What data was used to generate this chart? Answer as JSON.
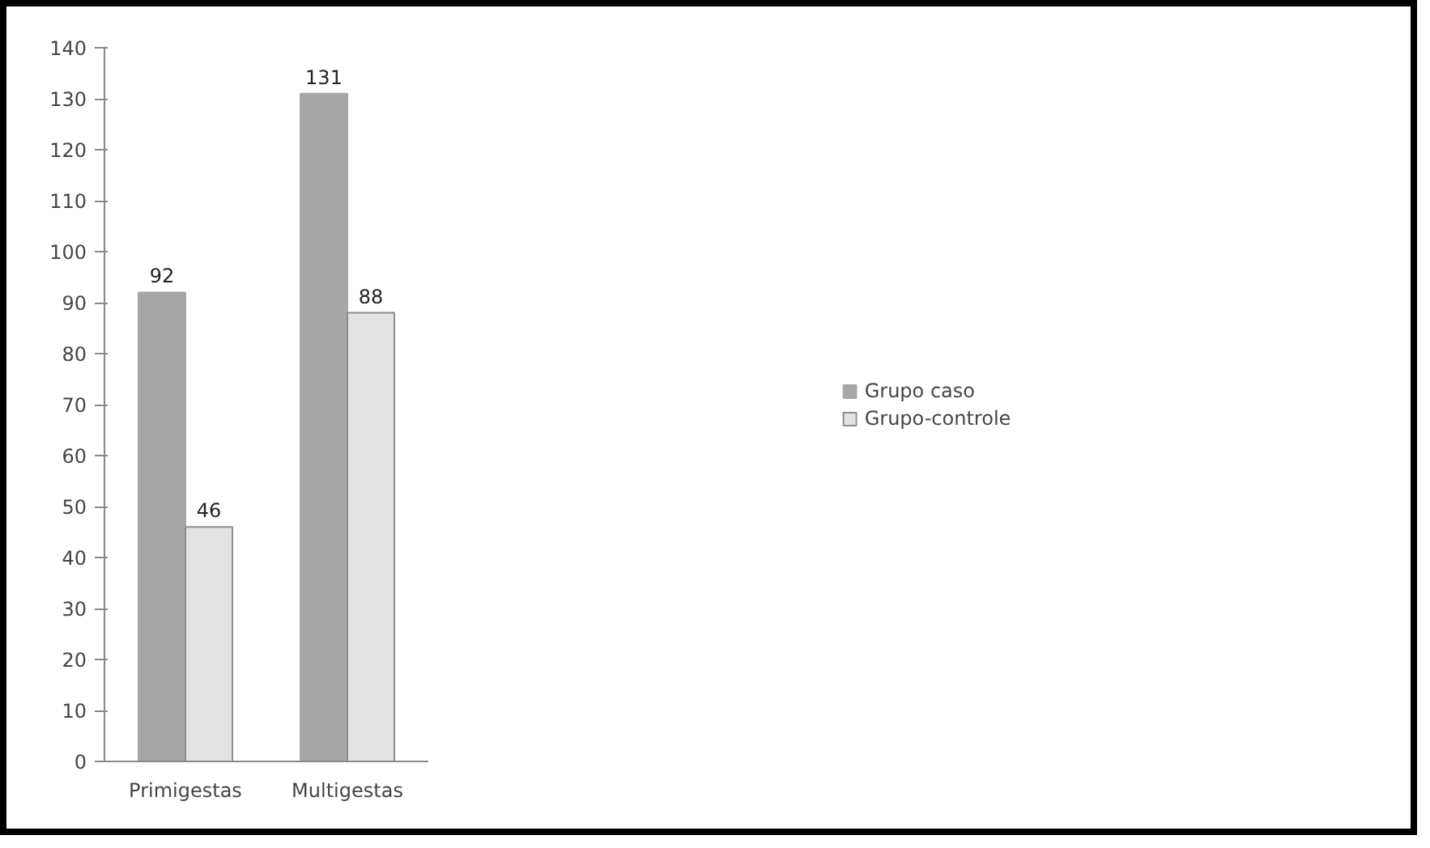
{
  "chart_data": {
    "type": "bar",
    "categories": [
      "Primigestas",
      "Multigestas"
    ],
    "series": [
      {
        "name": "Grupo caso",
        "color": "#a6a6a6",
        "values": [
          92,
          131
        ]
      },
      {
        "name": "Grupo-controle",
        "color": "#e3e3e3",
        "values": [
          46,
          88
        ]
      }
    ],
    "ylim": [
      0,
      140
    ],
    "yticks": [
      0,
      10,
      20,
      30,
      40,
      50,
      60,
      70,
      80,
      90,
      100,
      110,
      120,
      130,
      140
    ],
    "data_labels": true,
    "grid": false,
    "legend": "right"
  }
}
